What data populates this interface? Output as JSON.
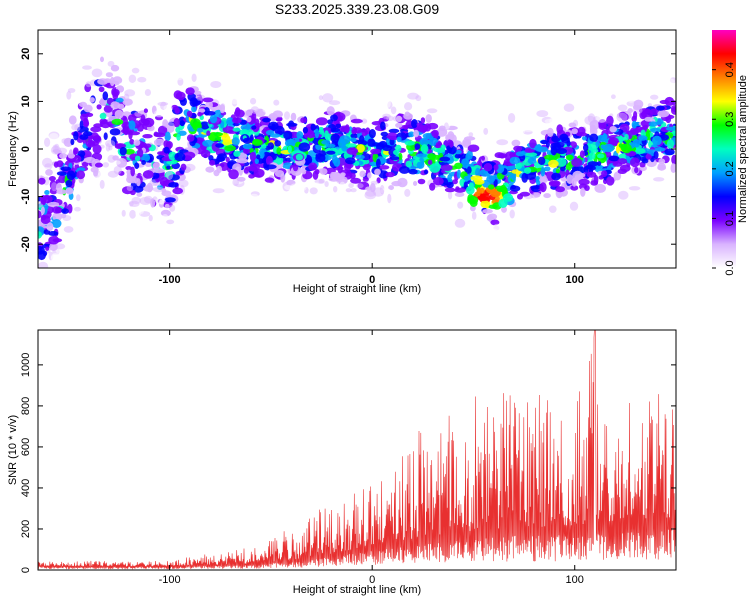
{
  "title": "S233.2025.339.23.08.G09",
  "chart_data": [
    {
      "type": "heatmap",
      "panel": "spectrogram",
      "xlabel": "Height of straight line (km)",
      "ylabel": "Frequency (Hz)",
      "xlim": [
        -165,
        150
      ],
      "ylim": [
        -25,
        25
      ],
      "xticks": [
        -100,
        0,
        100
      ],
      "xtick_labels": [
        "-100",
        "0",
        "100"
      ],
      "yticks": [
        -20,
        -10,
        0,
        10,
        20
      ],
      "ytick_labels": [
        "-20",
        "-10",
        "0",
        "10",
        "20"
      ],
      "ridge": {
        "description": "frequency of the dominant signal track vs height",
        "x": [
          -163,
          -150,
          -140,
          -130,
          -120,
          -100,
          -90,
          -80,
          -60,
          -40,
          -20,
          0,
          20,
          40,
          50,
          60,
          70,
          80,
          100,
          120,
          140,
          150
        ],
        "y": [
          -16,
          -7,
          3,
          10,
          0,
          -3,
          6,
          3,
          1,
          0,
          1,
          -1,
          0,
          -3,
          -6,
          -9,
          -5,
          -3,
          -2,
          0,
          3,
          4
        ]
      },
      "peak": {
        "x": 57,
        "y": -10,
        "value": 0.45
      },
      "colorbar": {
        "label": "Normalized spectral amplitude",
        "range": [
          0,
          0.48
        ],
        "ticks": [
          0.0,
          0.1,
          0.2,
          0.3,
          0.4
        ],
        "tick_labels": [
          "0.0",
          "0.1",
          "0.2",
          "0.3",
          "0.4"
        ],
        "colors": [
          "#ffffff",
          "#d9b3ff",
          "#7a00ff",
          "#0000ff",
          "#00a0ff",
          "#00ffc0",
          "#00ff00",
          "#ffff00",
          "#ff8000",
          "#ff0000",
          "#ff00c0"
        ]
      }
    },
    {
      "type": "line",
      "panel": "snr",
      "xlabel": "Height of straight line (km)",
      "ylabel": "SNR (10 * v/v)",
      "xlim": [
        -165,
        150
      ],
      "ylim": [
        0,
        1170
      ],
      "xticks": [
        -100,
        0,
        100
      ],
      "xtick_labels": [
        "-100",
        "0",
        "100"
      ],
      "yticks": [
        0,
        200,
        400,
        600,
        800,
        1000
      ],
      "ytick_labels": [
        "0",
        "200",
        "400",
        "600",
        "800",
        "1000"
      ],
      "color": "#e83030",
      "series": [
        {
          "name": "SNR",
          "x": [
            -165,
            -140,
            -120,
            -100,
            -80,
            -60,
            -50,
            -40,
            -30,
            -20,
            -10,
            0,
            10,
            20,
            30,
            40,
            50,
            60,
            70,
            80,
            90,
            100,
            110,
            120,
            130,
            140,
            150
          ],
          "envelope_max": [
            40,
            45,
            40,
            50,
            80,
            110,
            160,
            230,
            280,
            320,
            380,
            420,
            470,
            680,
            800,
            870,
            860,
            840,
            900,
            860,
            850,
            870,
            1170,
            880,
            860,
            860,
            880
          ],
          "baseline": [
            20,
            18,
            18,
            20,
            25,
            30,
            40,
            50,
            60,
            80,
            100,
            120,
            130,
            150,
            170,
            180,
            190,
            200,
            210,
            210,
            210,
            220,
            230,
            240,
            240,
            250,
            260
          ]
        }
      ]
    }
  ]
}
